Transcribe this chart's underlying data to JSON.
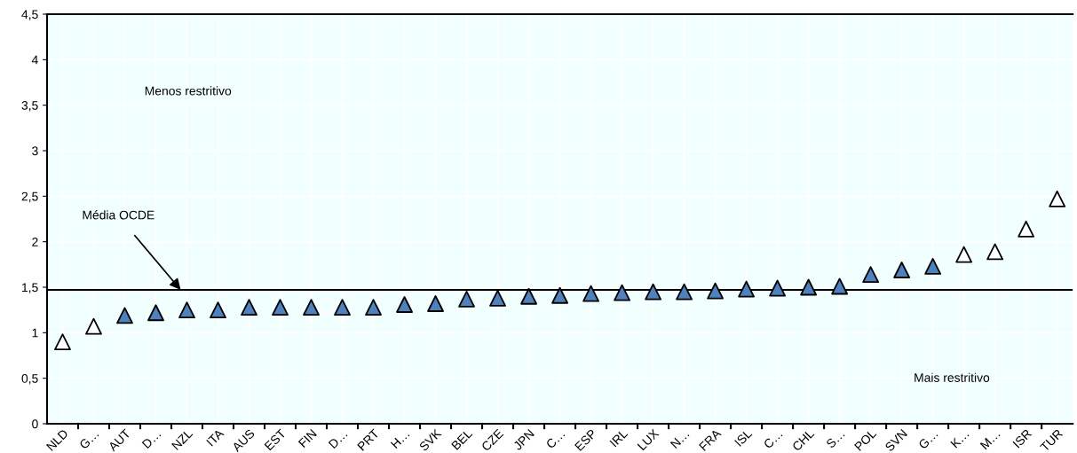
{
  "chart_data": {
    "type": "scatter",
    "categories": [
      "NLD",
      "G…",
      "AUT",
      "D…",
      "NZL",
      "ITA",
      "AUS",
      "EST",
      "FIN",
      "D…",
      "PRT",
      "H…",
      "SVK",
      "BEL",
      "CZE",
      "JPN",
      "C…",
      "ESP",
      "IRL",
      "LUX",
      "N…",
      "FRA",
      "ISL",
      "C…",
      "CHL",
      "S…",
      "POL",
      "SVN",
      "G…",
      "K…",
      "M…",
      "ISR",
      "TUR"
    ],
    "series": [
      {
        "color": "#4f81bd",
        "values": [
          null,
          null,
          1.19,
          1.22,
          1.25,
          1.25,
          1.28,
          1.28,
          1.28,
          1.28,
          1.28,
          1.31,
          1.32,
          1.37,
          1.38,
          1.4,
          1.41,
          1.43,
          1.44,
          1.45,
          1.45,
          1.46,
          1.48,
          1.49,
          1.5,
          1.51,
          1.64,
          1.69,
          1.73,
          null,
          null,
          null,
          null
        ]
      },
      {
        "color": "#ffffff",
        "values": [
          0.9,
          1.07,
          null,
          null,
          null,
          null,
          null,
          null,
          null,
          null,
          null,
          null,
          null,
          null,
          null,
          null,
          null,
          null,
          null,
          null,
          null,
          null,
          null,
          null,
          null,
          null,
          null,
          null,
          null,
          1.86,
          1.89,
          2.14,
          2.47
        ]
      }
    ],
    "marker": "triangle",
    "ylim": [
      0,
      4.5
    ],
    "yticks": [
      0,
      {
        "value": 0.5,
        "label": "0,5"
      },
      1,
      {
        "value": 1.5,
        "label": "1,5"
      },
      2,
      {
        "value": 2.5,
        "label": "2,5"
      },
      3,
      {
        "value": 3.5,
        "label": "3,5"
      },
      4,
      {
        "value": 4.5,
        "label": "4,5"
      }
    ],
    "grid": true,
    "ref_lines": [
      {
        "axis": "y",
        "value": 1.47,
        "color": "#000000",
        "label": "Média OCDE"
      }
    ],
    "annotations": [
      "Menos restritivo",
      "Mais restritivo"
    ]
  }
}
